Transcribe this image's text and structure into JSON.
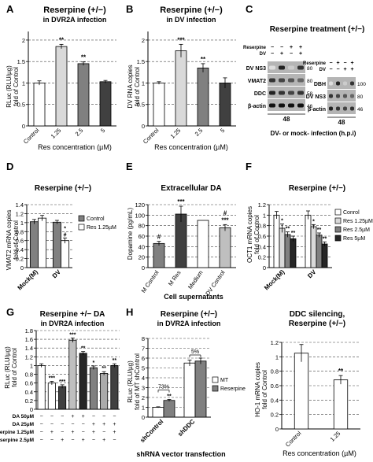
{
  "panels": [
    {
      "letter": "A",
      "title": "Reserpine (+/−)",
      "subtitle": "in DVR2A infection",
      "ylabel": [
        "RLuc (RLU/µg)",
        "fold of Control"
      ],
      "xlabel": "Res concentration (µM)",
      "yticks": [
        "0",
        "0.5",
        "1",
        "1.5",
        "2"
      ],
      "categories": [
        "Control",
        "1.25",
        "2.5",
        "5"
      ],
      "bar_labels": [
        "",
        "**",
        "**",
        ""
      ]
    },
    {
      "letter": "B",
      "title": "Reserpine (+/−)",
      "subtitle": "in DV infection",
      "ylabel": [
        "DV RNA copies",
        "fold of Control"
      ],
      "xlabel": "Res concentration (µM)",
      "yticks": [
        "0",
        "0.5",
        "1",
        "1.5",
        "2"
      ],
      "categories": [
        "Control",
        "1.25",
        "2.5",
        "5"
      ],
      "bar_labels": [
        "",
        "***",
        "**",
        ""
      ]
    },
    {
      "letter": "C",
      "title": "Reserpine treatment (+/−)",
      "left_blot": {
        "rows": [
          "DV NS3",
          "VMAT2",
          "DDC",
          "β-actin"
        ],
        "markers": [
          "80",
          "80",
          "58",
          "46"
        ],
        "header_rows": [
          {
            "label": "Reserpine",
            "cols": [
              "−",
              "−",
              "+",
              "+"
            ]
          },
          {
            "label": "DV",
            "cols": [
              "−",
              "+",
              "−",
              "+"
            ]
          }
        ],
        "time": "48"
      },
      "right_blot": {
        "rows": [
          "DBH",
          "DV NS3",
          "β-actin"
        ],
        "markers": [
          "100",
          "80",
          "46"
        ],
        "header_rows": [
          {
            "label": "Reserpine",
            "cols": [
              "−",
              "+",
              "−",
              "+"
            ]
          },
          {
            "label": "DV",
            "cols": [
              "−",
              "−",
              "+",
              "+"
            ]
          }
        ],
        "time": "48"
      },
      "caption": "DV- or mock- infection (h.p.i)"
    },
    {
      "letter": "D",
      "title": "Reserpine (+/−)",
      "ylabel": [
        "VMAT2 mRNA copies",
        "fold of Control"
      ],
      "yticks": [
        "0",
        "0.2",
        "0.4",
        "0.6",
        "0.8",
        "1",
        "1.2",
        "1.4"
      ],
      "categories": [
        "Mock(M)",
        "DV"
      ],
      "legend": [
        "Control",
        "Res 1.25µM"
      ],
      "bar_labels": [
        "",
        "",
        "",
        "*\n#"
      ]
    },
    {
      "letter": "E",
      "title": "Extracellular DA",
      "ylabel": [
        "Dopamine (pg/mL)"
      ],
      "xlabel": "Cell supernatants",
      "yticks": [
        "0",
        "20",
        "40",
        "60",
        "80",
        "100",
        "120"
      ],
      "categories": [
        "M Control",
        "M Res",
        "Medium",
        "DV Control"
      ],
      "bar_labels": [
        "#",
        "***",
        "",
        "#\n***"
      ]
    },
    {
      "letter": "F",
      "title": "Reserpine (+/−)",
      "ylabel": [
        "OCT1 mRNA copies",
        "fold of Control"
      ],
      "yticks": [
        "0",
        "0.2",
        "0.4",
        "0.6",
        "0.8",
        "1",
        "1.2"
      ],
      "categories": [
        "Mock(M)",
        "DV"
      ],
      "legend": [
        "Conrol",
        "Res 1.25µM",
        "Res 2.5µM",
        "Res 5µM"
      ],
      "bar_labels": [
        "",
        "*",
        "**",
        "**",
        "",
        "*",
        "**",
        "**"
      ]
    },
    {
      "letter": "G",
      "title": "Reserpine +/− DA",
      "subtitle": "in DVR2A infection",
      "ylabel": [
        "RLuc (RLU/µg)",
        "fold of Control"
      ],
      "yticks": [
        "0",
        "0.2",
        "0.4",
        "0.6",
        "0.8",
        "1",
        "1.2",
        "1.4",
        "1.6",
        "1.8"
      ],
      "bar_labels": [
        "",
        "***",
        "***",
        "***",
        "**",
        "*",
        "**",
        "**"
      ],
      "row_labels": [
        "DA 50µM",
        "DA 25µM",
        "Reserpine 1.25µM",
        "Reserpine 2.5µM"
      ],
      "signs": [
        [
          "−",
          "−",
          "−",
          "+",
          "+",
          "−",
          "−",
          "−"
        ],
        [
          "−",
          "−",
          "−",
          "−",
          "−",
          "+",
          "+",
          "+"
        ],
        [
          "−",
          "+",
          "−",
          "+",
          "−",
          "+",
          "−",
          "+"
        ],
        [
          "−",
          "−",
          "+",
          "−",
          "+",
          "−",
          "+",
          "−"
        ]
      ]
    },
    {
      "letter": "H",
      "title": "Reserpine (+/−)",
      "subtitle": "in DVR2A infection",
      "ylabel": [
        "RLuc (RLU/µg)",
        "fold of MT shControl"
      ],
      "xlabel": "shRNA vector transfection",
      "yticks": [
        "0",
        "1",
        "2",
        "3",
        "4",
        "5",
        "6",
        "7",
        "8"
      ],
      "categories": [
        "shControl",
        "shDDC"
      ],
      "legend": [
        "MT",
        "Reserpine"
      ],
      "bar_labels": [
        "",
        "**",
        "",
        ""
      ],
      "bracket_labels": [
        "73%",
        "5%"
      ]
    },
    {
      "letter": "",
      "title": "DDC silencing,",
      "subtitle": "Reserpine (+/−)",
      "ylabel": [
        "HO-1 mRNA copies",
        "fold of Control"
      ],
      "xlabel": "Res concentration (µM)",
      "yticks": [
        "0",
        "0.2",
        "0.4",
        "0.6",
        "0.8",
        "1",
        "1.2"
      ],
      "categories": [
        "Control",
        "1.25"
      ],
      "bar_labels": [
        "",
        "**"
      ]
    }
  ],
  "chart_data": [
    {
      "type": "bar",
      "panel": "A",
      "categories": [
        "Control",
        "1.25",
        "2.5",
        "5"
      ],
      "values": [
        1.0,
        1.85,
        1.45,
        1.03
      ],
      "errors": [
        0.05,
        0.05,
        0.04,
        0.03
      ],
      "ylim": [
        0,
        2.2
      ],
      "colors": [
        "#ffffff",
        "#d9d9d9",
        "#808080",
        "#404040"
      ]
    },
    {
      "type": "bar",
      "panel": "B",
      "categories": [
        "Control",
        "1.25",
        "2.5",
        "5"
      ],
      "values": [
        1.0,
        1.75,
        1.35,
        1.0
      ],
      "errors": [
        0.03,
        0.15,
        0.1,
        0.12
      ],
      "ylim": [
        0,
        2.2
      ],
      "colors": [
        "#ffffff",
        "#d9d9d9",
        "#808080",
        "#404040"
      ]
    },
    {
      "type": "bar",
      "panel": "D",
      "categories": [
        "Mock(M)",
        "DV"
      ],
      "series": [
        {
          "name": "Control",
          "values": [
            1.02,
            1.01
          ],
          "errors": [
            0.05,
            0.04
          ],
          "color": "#808080"
        },
        {
          "name": "Res 1.25µM",
          "values": [
            1.1,
            0.6
          ],
          "errors": [
            0.06,
            0.06
          ],
          "color": "#ffffff"
        }
      ],
      "ylim": [
        0,
        1.4
      ]
    },
    {
      "type": "bar",
      "panel": "E",
      "categories": [
        "M Control",
        "M Res",
        "Medium",
        "DV Control"
      ],
      "values": [
        46,
        102,
        90,
        76
      ],
      "errors": [
        4,
        15,
        0,
        6
      ],
      "ylim": [
        0,
        120
      ],
      "colors": [
        "#808080",
        "#404040",
        "#ffffff",
        "#bfbfbf"
      ]
    },
    {
      "type": "bar",
      "panel": "F",
      "categories": [
        "Mock(M)",
        "DV"
      ],
      "series": [
        {
          "name": "Conrol",
          "values": [
            1.0,
            1.0
          ],
          "errors": [
            0.07,
            0.08
          ],
          "color": "#ffffff"
        },
        {
          "name": "Res 1.25µM",
          "values": [
            0.75,
            0.78
          ],
          "errors": [
            0.08,
            0.04
          ],
          "color": "#d9d9d9"
        },
        {
          "name": "Res 2.5µM",
          "values": [
            0.63,
            0.62
          ],
          "errors": [
            0.05,
            0.04
          ],
          "color": "#808080"
        },
        {
          "name": "Res 5µM",
          "values": [
            0.55,
            0.45
          ],
          "errors": [
            0.05,
            0.04
          ],
          "color": "#262626"
        }
      ],
      "ylim": [
        0,
        1.2
      ]
    },
    {
      "type": "bar",
      "panel": "G",
      "categories": [
        "1",
        "2",
        "3",
        "4",
        "5",
        "6",
        "7",
        "8"
      ],
      "values": [
        1.0,
        0.6,
        0.52,
        1.58,
        1.28,
        0.95,
        0.82,
        1.0
      ],
      "errors": [
        0.04,
        0.04,
        0.04,
        0.05,
        0.04,
        0.04,
        0.04,
        0.04
      ],
      "ylim": [
        0,
        1.8
      ],
      "colors": [
        "#ffffff",
        "#ffffff",
        "#404040",
        "#bfbfbf",
        "#262626",
        "#808080",
        "#aaaaaa",
        "#404040"
      ]
    },
    {
      "type": "bar",
      "panel": "H",
      "categories": [
        "shControl",
        "shDDC"
      ],
      "series": [
        {
          "name": "MT",
          "values": [
            1.0,
            5.5
          ],
          "errors": [
            0.05,
            0.3
          ],
          "color": "#ffffff"
        },
        {
          "name": "Reserpine",
          "values": [
            1.7,
            5.7
          ],
          "errors": [
            0.1,
            0.3
          ],
          "color": "#808080"
        }
      ],
      "ylim": [
        0,
        8
      ]
    },
    {
      "type": "bar",
      "panel": "I",
      "categories": [
        "Control",
        "1.25"
      ],
      "values": [
        1.05,
        0.68
      ],
      "errors": [
        0.12,
        0.06
      ],
      "ylim": [
        0,
        1.2
      ],
      "colors": [
        "#ffffff",
        "#ffffff"
      ]
    }
  ]
}
